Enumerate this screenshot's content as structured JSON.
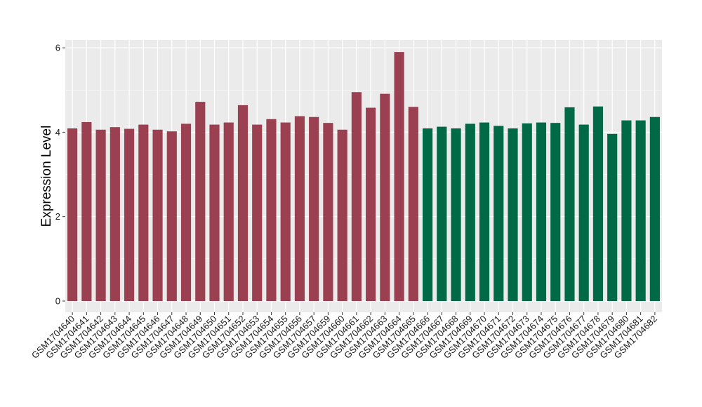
{
  "chart_data": {
    "type": "bar",
    "title": "",
    "xlabel": "",
    "ylabel": "Expression Level",
    "ylim": [
      0,
      6.2
    ],
    "yticks": [
      0,
      2,
      4,
      6
    ],
    "grid": true,
    "legend": "none",
    "categories": [
      "GSM1704640",
      "GSM1704641",
      "GSM1704642",
      "GSM1704643",
      "GSM1704644",
      "GSM1704645",
      "GSM1704646",
      "GSM1704647",
      "GSM1704648",
      "GSM1704649",
      "GSM1704650",
      "GSM1704651",
      "GSM1704652",
      "GSM1704653",
      "GSM1704654",
      "GSM1704655",
      "GSM1704656",
      "GSM1704657",
      "GSM1704659",
      "GSM1704660",
      "GSM1704661",
      "GSM1704662",
      "GSM1704663",
      "GSM1704664",
      "GSM1704665",
      "GSM1704666",
      "GSM1704667",
      "GSM1704668",
      "GSM1704669",
      "GSM1704670",
      "GSM1704671",
      "GSM1704672",
      "GSM1704673",
      "GSM1704674",
      "GSM1704675",
      "GSM1704676",
      "GSM1704677",
      "GSM1704678",
      "GSM1704679",
      "GSM1704680",
      "GSM1704681",
      "GSM1704682"
    ],
    "values": [
      4.09,
      4.24,
      4.06,
      4.12,
      4.08,
      4.18,
      4.06,
      4.02,
      4.2,
      4.72,
      4.18,
      4.23,
      4.64,
      4.18,
      4.31,
      4.23,
      4.38,
      4.36,
      4.22,
      4.06,
      4.95,
      4.58,
      4.91,
      5.9,
      4.6,
      4.09,
      4.13,
      4.09,
      4.2,
      4.23,
      4.15,
      4.09,
      4.21,
      4.23,
      4.22,
      4.59,
      4.18,
      4.61,
      3.96,
      4.28,
      4.28,
      4.36
    ],
    "bar_colors": [
      "#9b4050",
      "#9b4050",
      "#9b4050",
      "#9b4050",
      "#9b4050",
      "#9b4050",
      "#9b4050",
      "#9b4050",
      "#9b4050",
      "#9b4050",
      "#9b4050",
      "#9b4050",
      "#9b4050",
      "#9b4050",
      "#9b4050",
      "#9b4050",
      "#9b4050",
      "#9b4050",
      "#9b4050",
      "#9b4050",
      "#9b4050",
      "#9b4050",
      "#9b4050",
      "#9b4050",
      "#9b4050",
      "#006a46",
      "#006a46",
      "#006a46",
      "#006a46",
      "#006a46",
      "#006a46",
      "#006a46",
      "#006a46",
      "#006a46",
      "#006a46",
      "#006a46",
      "#006a46",
      "#006a46",
      "#006a46",
      "#006a46",
      "#006a46",
      "#006a46"
    ],
    "panel_background": "#ebebeb",
    "grid_color": "#ffffff"
  }
}
